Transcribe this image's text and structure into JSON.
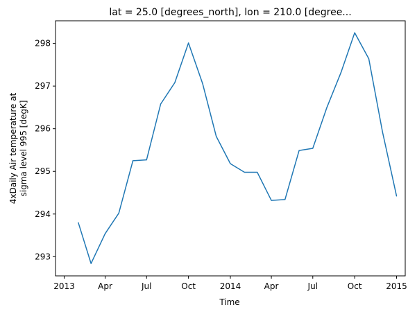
{
  "chart_data": {
    "type": "line",
    "title": "lat = 25.0 [degrees_north], lon = 210.0 [degree...",
    "xlabel": "Time",
    "ylabel_lines": [
      "4xDaily Air temperature at",
      "sigma level 995 [degK]"
    ],
    "xlim": [
      "2012-12-13",
      "2015-01-20"
    ],
    "ylim": [
      292.55,
      298.53
    ],
    "x_ticks": [
      {
        "date": "2013-01-01",
        "label": "2013"
      },
      {
        "date": "2013-04-01",
        "label": "Apr"
      },
      {
        "date": "2013-07-01",
        "label": "Jul"
      },
      {
        "date": "2013-10-01",
        "label": "Oct"
      },
      {
        "date": "2014-01-01",
        "label": "2014"
      },
      {
        "date": "2014-04-01",
        "label": "Apr"
      },
      {
        "date": "2014-07-01",
        "label": "Jul"
      },
      {
        "date": "2014-10-01",
        "label": "Oct"
      },
      {
        "date": "2015-01-01",
        "label": "2015"
      }
    ],
    "y_ticks": [
      293,
      294,
      295,
      296,
      297,
      298
    ],
    "grid": false,
    "series": [
      {
        "color": "#1f77b4",
        "x": [
          "2013-02-01",
          "2013-03-01",
          "2013-04-01",
          "2013-05-01",
          "2013-06-01",
          "2013-07-01",
          "2013-08-01",
          "2013-09-01",
          "2013-10-01",
          "2013-11-01",
          "2013-12-01",
          "2014-01-01",
          "2014-02-01",
          "2014-03-01",
          "2014-04-01",
          "2014-05-01",
          "2014-06-01",
          "2014-07-01",
          "2014-08-01",
          "2014-09-01",
          "2014-10-01",
          "2014-11-01",
          "2014-12-01",
          "2015-01-01"
        ],
        "y": [
          293.8,
          292.84,
          293.54,
          294.02,
          295.25,
          295.27,
          296.58,
          297.08,
          298.01,
          297.06,
          295.82,
          295.18,
          294.98,
          294.98,
          294.32,
          294.34,
          295.49,
          295.54,
          296.5,
          297.32,
          298.25,
          297.64,
          295.93,
          294.42
        ]
      }
    ]
  }
}
